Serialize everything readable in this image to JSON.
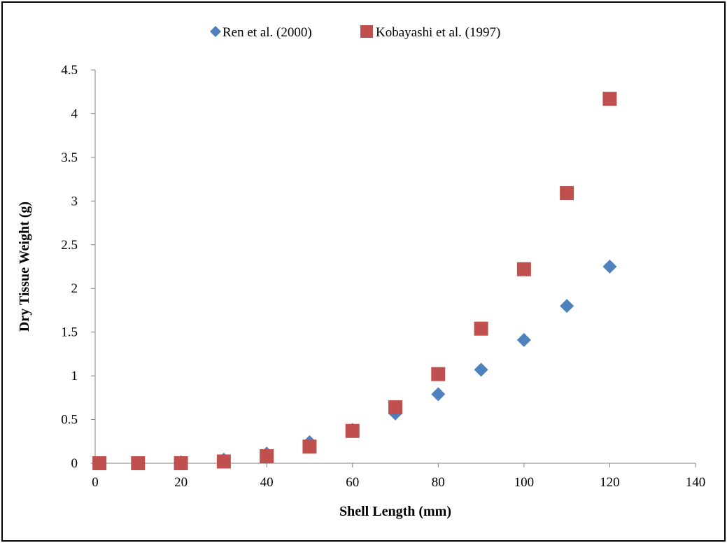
{
  "chart_data": {
    "type": "scatter",
    "title": "",
    "xlabel": "Shell Length (mm)",
    "ylabel": "Dry Tissue Weight (g)",
    "xlim": [
      0,
      140
    ],
    "ylim": [
      0,
      4.5
    ],
    "xticks": [
      0,
      20,
      40,
      60,
      80,
      100,
      120,
      140
    ],
    "yticks": [
      0,
      0.5,
      1,
      1.5,
      2,
      2.5,
      3,
      3.5,
      4,
      4.5
    ],
    "grid": false,
    "legend_position": "top",
    "series": [
      {
        "name": "Ren et al. (2000)",
        "marker": "diamond",
        "color": "#4F81BD",
        "x": [
          1,
          10,
          20,
          30,
          40,
          50,
          60,
          70,
          80,
          90,
          100,
          110,
          120
        ],
        "y": [
          0,
          0,
          0.01,
          0.04,
          0.11,
          0.24,
          0.38,
          0.57,
          0.79,
          1.07,
          1.41,
          1.8,
          2.25
        ]
      },
      {
        "name": "Kobayashi et al. (1997)",
        "marker": "square",
        "color": "#C0504D",
        "x": [
          1,
          10,
          20,
          30,
          40,
          50,
          60,
          70,
          80,
          90,
          100,
          110,
          120
        ],
        "y": [
          0,
          0,
          0,
          0.02,
          0.08,
          0.19,
          0.37,
          0.64,
          1.02,
          1.54,
          2.22,
          3.09,
          4.17
        ]
      }
    ]
  }
}
